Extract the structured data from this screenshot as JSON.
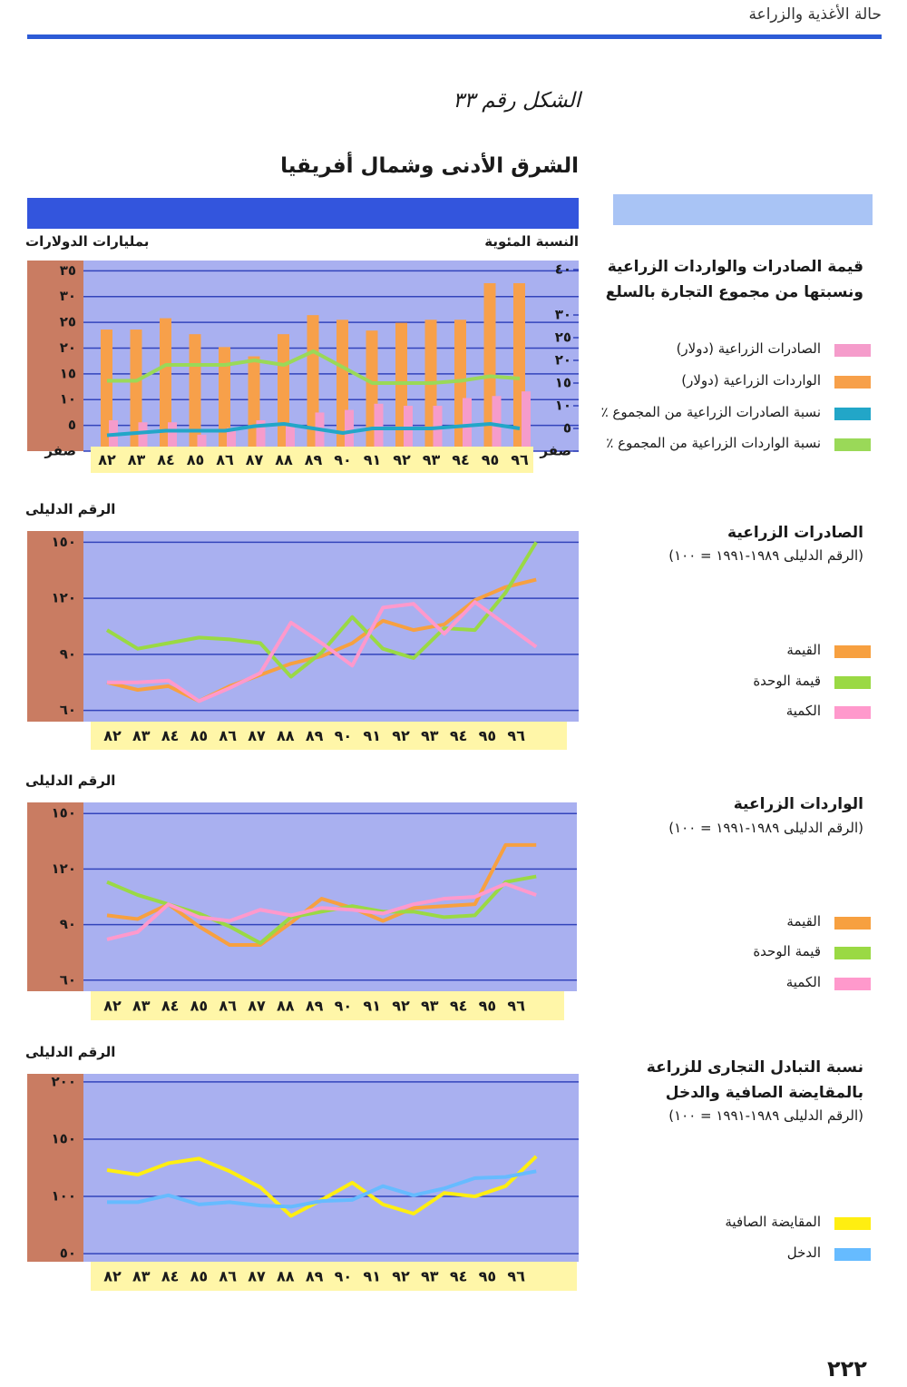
{
  "header": {
    "running_title": "حالة الأغذية والزراعة"
  },
  "figure_label": "الشكل رقم ٣٣",
  "region_title": "الشرق الأدنى وشمال أفريقيا",
  "page_number": "٢٢٢",
  "chart_data": [
    {
      "type": "combo",
      "title": "قيمة الصادرات والواردات الزراعية ونسبتها من مجموع التجارة بالسلع",
      "ylabel": "بمليارات الدولارات",
      "y2label": "النسبة المئوية",
      "categories": [
        "٨٢",
        "٨٣",
        "٨٤",
        "٨٥",
        "٨٦",
        "٨٧",
        "٨٨",
        "٨٩",
        "٩٠",
        "٩١",
        "٩٢",
        "٩٣",
        "٩٤",
        "٩٥",
        "٩٦"
      ],
      "series": [
        {
          "name": "الصادرات الزراعية (دولار)",
          "kind": "bar",
          "color": "#f59ccb",
          "values": [
            6,
            5.6,
            5.6,
            3.2,
            4.5,
            6,
            5,
            7.5,
            8,
            9.2,
            8.8,
            8.8,
            10.3,
            10.7,
            11.6
          ]
        },
        {
          "name": "الواردات الزراعية (دولار)",
          "kind": "bar",
          "color": "#f7a04a",
          "values": [
            23.6,
            23.6,
            25.8,
            22.7,
            20.2,
            18.4,
            22.7,
            26.4,
            25.5,
            23.4,
            24.9,
            25.5,
            25.5,
            32.6,
            32.6
          ]
        },
        {
          "name": "نسبة الصادرات الزراعية من المجموع ٪",
          "kind": "line",
          "axis": "y2",
          "color": "#22a6c8",
          "values": [
            3.5,
            4,
            4.5,
            4.5,
            4.5,
            5.5,
            6,
            5,
            4,
            5,
            5,
            5,
            5.5,
            6,
            5
          ]
        },
        {
          "name": "نسبة الواردات الزراعية من المجموع ٪",
          "kind": "line",
          "axis": "y2",
          "color": "#9ad958",
          "values": [
            15.5,
            15.5,
            19,
            19,
            19,
            20,
            19,
            22,
            18.5,
            15,
            15,
            15,
            15.5,
            16.5,
            16
          ]
        }
      ],
      "ylim": [
        0,
        37
      ],
      "yticks": [
        {
          "value": 0,
          "label": "صفر"
        },
        {
          "value": 5,
          "label": "٥"
        },
        {
          "value": 10,
          "label": "١٠"
        },
        {
          "value": 15,
          "label": "١٥"
        },
        {
          "value": 20,
          "label": "٢٠"
        },
        {
          "value": 25,
          "label": "٢٥"
        },
        {
          "value": 30,
          "label": "٣٠"
        },
        {
          "value": 35,
          "label": "٣٥"
        }
      ],
      "y2lim": [
        0,
        42
      ],
      "y2ticks": [
        {
          "value": 0,
          "label": "صفر"
        },
        {
          "value": 5,
          "label": "٥"
        },
        {
          "value": 10,
          "label": "١٠"
        },
        {
          "value": 15,
          "label": "١٥"
        },
        {
          "value": 20,
          "label": "٢٠"
        },
        {
          "value": 25,
          "label": "٢٥"
        },
        {
          "value": 30,
          "label": "٣٠"
        },
        {
          "value": 40,
          "label": "٤٠"
        }
      ],
      "grid": true
    },
    {
      "type": "line",
      "title": "الصادرات الزراعية",
      "subtitle": "(الرقم الدليلى ١٩٨٩-١٩٩١ = ١٠٠)",
      "ylabel": "الرقم الدليلى",
      "categories": [
        "٨٢",
        "٨٣",
        "٨٤",
        "٨٥",
        "٨٦",
        "٨٧",
        "٨٨",
        "٨٩",
        "٩٠",
        "٩١",
        "٩٢",
        "٩٣",
        "٩٤",
        "٩٥",
        "٩٦"
      ],
      "series": [
        {
          "name": "القيمة",
          "color": "#f7a040",
          "values": [
            75,
            71,
            73,
            65,
            73,
            79,
            85,
            89,
            96,
            108,
            103,
            106,
            119,
            126,
            130
          ]
        },
        {
          "name": "قيمة الوحدة",
          "color": "#9ad944",
          "values": [
            103,
            93,
            96,
            99,
            98,
            96,
            78,
            91,
            110,
            93,
            88,
            104,
            103,
            123,
            150
          ]
        },
        {
          "name": "الكمية",
          "color": "#ff99cc",
          "values": [
            75,
            75,
            76,
            65,
            72,
            80,
            107,
            96,
            84,
            115,
            117,
            101,
            118,
            106,
            94
          ]
        }
      ],
      "ylim": [
        54,
        156
      ],
      "yticks": [
        {
          "value": 60,
          "label": "٦٠"
        },
        {
          "value": 90,
          "label": "٩٠"
        },
        {
          "value": 120,
          "label": "١٢٠"
        },
        {
          "value": 150,
          "label": "١٥٠"
        }
      ],
      "grid": true
    },
    {
      "type": "line",
      "title": "الواردات الزراعية",
      "subtitle": "(الرقم الدليلى ١٩٨٩-١٩٩١ = ١٠٠)",
      "ylabel": "الرقم الدليلى",
      "categories": [
        "٨٢",
        "٨٣",
        "٨٤",
        "٨٥",
        "٨٦",
        "٨٧",
        "٨٨",
        "٨٩",
        "٩٠",
        "٩١",
        "٩٢",
        "٩٣",
        "٩٤",
        "٩٥",
        "٩٦"
      ],
      "series": [
        {
          "name": "القيمة",
          "color": "#f7a040",
          "values": [
            95,
            93,
            101,
            89,
            79,
            79,
            91,
            104,
            99,
            92,
            99,
            100,
            101,
            133,
            133
          ]
        },
        {
          "name": "قيمة الوحدة",
          "color": "#9ad944",
          "values": [
            113,
            106,
            101,
            96,
            89,
            80,
            94,
            97,
            100,
            97,
            97,
            94,
            95,
            113,
            116
          ]
        },
        {
          "name": "الكمية",
          "color": "#ff99cc",
          "values": [
            82,
            86,
            101,
            94,
            92,
            98,
            95,
            99,
            98,
            96,
            101,
            104,
            105,
            112,
            106
          ]
        }
      ],
      "ylim": [
        54,
        156
      ],
      "yticks": [
        {
          "value": 60,
          "label": "٦٠"
        },
        {
          "value": 90,
          "label": "٩٠"
        },
        {
          "value": 120,
          "label": "١٢٠"
        },
        {
          "value": 150,
          "label": "١٥٠"
        }
      ],
      "grid": true
    },
    {
      "type": "line",
      "title": "نسبة التبادل التجارى للزراعة بالمقايضة الصافية والدخل",
      "subtitle": "(الرقم الدليلى ١٩٨٩-١٩٩١ = ١٠٠)",
      "ylabel": "الرقم الدليلى",
      "categories": [
        "٨٢",
        "٨٣",
        "٨٤",
        "٨٥",
        "٨٦",
        "٨٧",
        "٨٨",
        "٨٩",
        "٩٠",
        "٩١",
        "٩٢",
        "٩٣",
        "٩٤",
        "٩٥",
        "٩٦"
      ],
      "series": [
        {
          "name": "المقايضة الصافية",
          "color": "#ffee11",
          "values": [
            123,
            119,
            129,
            133,
            122,
            108,
            83,
            97,
            112,
            93,
            85,
            103,
            100,
            109,
            135
          ]
        },
        {
          "name": "الدخل",
          "color": "#66bbff",
          "values": [
            95,
            95,
            101,
            93,
            95,
            92,
            91,
            96,
            97,
            109,
            101,
            107,
            116,
            117,
            122
          ]
        }
      ],
      "ylim": [
        43,
        207
      ],
      "yticks": [
        {
          "value": 50,
          "label": "٥٠"
        },
        {
          "value": 100,
          "label": "١٠٠"
        },
        {
          "value": 150,
          "label": "١٥٠"
        },
        {
          "value": 200,
          "label": "٢٠٠"
        }
      ],
      "grid": true
    }
  ]
}
